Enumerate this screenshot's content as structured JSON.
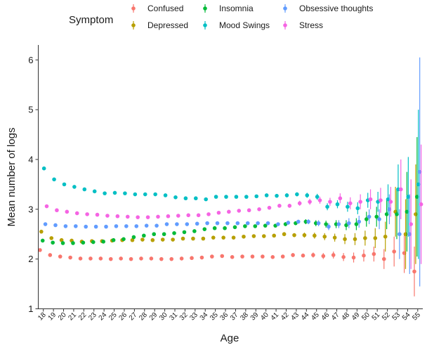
{
  "chart_data": {
    "type": "scatter",
    "xlabel": "Age",
    "ylabel": "Mean number of logs",
    "ylim": [
      1,
      6.3
    ],
    "yticks": [
      1,
      2,
      3,
      4,
      5,
      6
    ],
    "legend_title": "Symptom",
    "legend_position": "top",
    "grid": false,
    "categories": [
      "18",
      "19",
      "20",
      "21",
      "22",
      "23",
      "24",
      "25",
      "26",
      "27",
      "28",
      "29",
      "30",
      "31",
      "32",
      "33",
      "34",
      "35",
      "36",
      "37",
      "38",
      "39",
      "40",
      "41",
      "42",
      "43",
      "44",
      "45",
      "46",
      "47",
      "48",
      "49",
      "50",
      "51",
      "52",
      "53",
      "54",
      "55"
    ],
    "series": [
      {
        "name": "Confused",
        "color": "#F8766D",
        "values": [
          2.18,
          2.08,
          2.05,
          2.03,
          2.01,
          2.01,
          2.01,
          2.0,
          2.01,
          2.0,
          2.01,
          2.01,
          2.0,
          2.0,
          2.01,
          2.02,
          2.03,
          2.05,
          2.06,
          2.04,
          2.05,
          2.05,
          2.05,
          2.04,
          2.05,
          2.08,
          2.07,
          2.08,
          2.06,
          2.08,
          2.04,
          2.03,
          2.07,
          2.1,
          2.0,
          2.15,
          2.12,
          1.75
        ],
        "err": [
          0.02,
          0.02,
          0.02,
          0.02,
          0.02,
          0.02,
          0.02,
          0.02,
          0.02,
          0.02,
          0.02,
          0.02,
          0.02,
          0.02,
          0.02,
          0.02,
          0.02,
          0.02,
          0.02,
          0.02,
          0.02,
          0.02,
          0.03,
          0.03,
          0.03,
          0.04,
          0.04,
          0.05,
          0.06,
          0.07,
          0.08,
          0.1,
          0.12,
          0.15,
          0.2,
          0.3,
          0.4,
          0.5
        ]
      },
      {
        "name": "Depressed",
        "color": "#B79F00",
        "values": [
          2.55,
          2.42,
          2.38,
          2.37,
          2.35,
          2.36,
          2.36,
          2.37,
          2.38,
          2.38,
          2.39,
          2.38,
          2.39,
          2.39,
          2.41,
          2.41,
          2.41,
          2.43,
          2.43,
          2.43,
          2.45,
          2.46,
          2.46,
          2.47,
          2.5,
          2.48,
          2.48,
          2.47,
          2.45,
          2.43,
          2.4,
          2.4,
          2.42,
          2.42,
          2.45,
          2.95,
          2.5,
          2.9
        ],
        "err": [
          0.02,
          0.02,
          0.02,
          0.02,
          0.02,
          0.02,
          0.02,
          0.02,
          0.02,
          0.02,
          0.02,
          0.02,
          0.02,
          0.02,
          0.02,
          0.02,
          0.02,
          0.02,
          0.02,
          0.02,
          0.02,
          0.03,
          0.03,
          0.03,
          0.04,
          0.04,
          0.05,
          0.06,
          0.07,
          0.08,
          0.1,
          0.12,
          0.15,
          0.2,
          0.3,
          0.5,
          0.7,
          1.0
        ]
      },
      {
        "name": "Insomnia",
        "color": "#00BA38",
        "values": [
          2.37,
          2.33,
          2.32,
          2.32,
          2.33,
          2.34,
          2.35,
          2.38,
          2.4,
          2.44,
          2.47,
          2.5,
          2.5,
          2.52,
          2.54,
          2.56,
          2.6,
          2.62,
          2.62,
          2.64,
          2.66,
          2.66,
          2.67,
          2.67,
          2.7,
          2.72,
          2.75,
          2.72,
          2.7,
          2.7,
          2.68,
          2.7,
          2.8,
          2.85,
          2.9,
          2.9,
          2.95,
          3.25
        ],
        "err": [
          0.02,
          0.02,
          0.02,
          0.02,
          0.02,
          0.02,
          0.02,
          0.02,
          0.02,
          0.02,
          0.02,
          0.02,
          0.02,
          0.02,
          0.02,
          0.02,
          0.02,
          0.02,
          0.02,
          0.02,
          0.02,
          0.03,
          0.03,
          0.03,
          0.04,
          0.04,
          0.05,
          0.06,
          0.07,
          0.08,
          0.1,
          0.12,
          0.15,
          0.2,
          0.3,
          0.5,
          0.8,
          1.2
        ]
      },
      {
        "name": "Mood Swings",
        "color": "#00BFC4",
        "values": [
          3.82,
          3.6,
          3.5,
          3.45,
          3.4,
          3.36,
          3.32,
          3.33,
          3.32,
          3.3,
          3.3,
          3.3,
          3.28,
          3.24,
          3.22,
          3.22,
          3.2,
          3.25,
          3.25,
          3.25,
          3.25,
          3.26,
          3.28,
          3.27,
          3.28,
          3.3,
          3.28,
          3.25,
          3.05,
          3.1,
          3.05,
          3.02,
          3.18,
          3.15,
          3.2,
          3.4,
          3.25,
          3.5
        ],
        "err": [
          0.02,
          0.02,
          0.02,
          0.02,
          0.02,
          0.02,
          0.02,
          0.02,
          0.02,
          0.02,
          0.02,
          0.02,
          0.02,
          0.02,
          0.02,
          0.02,
          0.02,
          0.02,
          0.02,
          0.02,
          0.02,
          0.03,
          0.03,
          0.03,
          0.04,
          0.04,
          0.05,
          0.06,
          0.07,
          0.08,
          0.1,
          0.12,
          0.15,
          0.2,
          0.3,
          0.5,
          0.8,
          1.5
        ]
      },
      {
        "name": "Obsessive thoughts",
        "color": "#619CFF",
        "values": [
          2.7,
          2.68,
          2.66,
          2.66,
          2.65,
          2.65,
          2.65,
          2.66,
          2.66,
          2.66,
          2.67,
          2.67,
          2.7,
          2.7,
          2.7,
          2.71,
          2.72,
          2.72,
          2.72,
          2.72,
          2.72,
          2.72,
          2.72,
          2.7,
          2.73,
          2.75,
          2.75,
          2.72,
          2.65,
          2.7,
          2.72,
          2.75,
          2.85,
          2.8,
          3.0,
          2.5,
          2.5,
          3.75
        ],
        "err": [
          0.02,
          0.02,
          0.02,
          0.02,
          0.02,
          0.02,
          0.02,
          0.02,
          0.02,
          0.02,
          0.02,
          0.02,
          0.02,
          0.02,
          0.02,
          0.02,
          0.02,
          0.02,
          0.02,
          0.02,
          0.02,
          0.03,
          0.03,
          0.03,
          0.04,
          0.04,
          0.05,
          0.06,
          0.07,
          0.08,
          0.1,
          0.12,
          0.15,
          0.2,
          0.3,
          0.5,
          0.8,
          2.3
        ]
      },
      {
        "name": "Stress",
        "color": "#F564E3",
        "values": [
          3.06,
          2.98,
          2.95,
          2.92,
          2.9,
          2.89,
          2.87,
          2.86,
          2.85,
          2.84,
          2.84,
          2.85,
          2.86,
          2.87,
          2.88,
          2.88,
          2.9,
          2.93,
          2.95,
          2.97,
          2.98,
          3.0,
          3.03,
          3.07,
          3.07,
          3.12,
          3.15,
          3.18,
          3.15,
          3.22,
          3.12,
          3.15,
          3.2,
          3.18,
          3.15,
          3.4,
          2.7,
          3.1
        ],
        "err": [
          0.02,
          0.02,
          0.02,
          0.02,
          0.02,
          0.02,
          0.02,
          0.02,
          0.02,
          0.02,
          0.02,
          0.02,
          0.02,
          0.02,
          0.02,
          0.02,
          0.02,
          0.02,
          0.02,
          0.02,
          0.02,
          0.03,
          0.03,
          0.03,
          0.04,
          0.05,
          0.06,
          0.07,
          0.08,
          0.1,
          0.12,
          0.15,
          0.2,
          0.25,
          0.3,
          0.6,
          0.9,
          1.2
        ]
      }
    ]
  }
}
